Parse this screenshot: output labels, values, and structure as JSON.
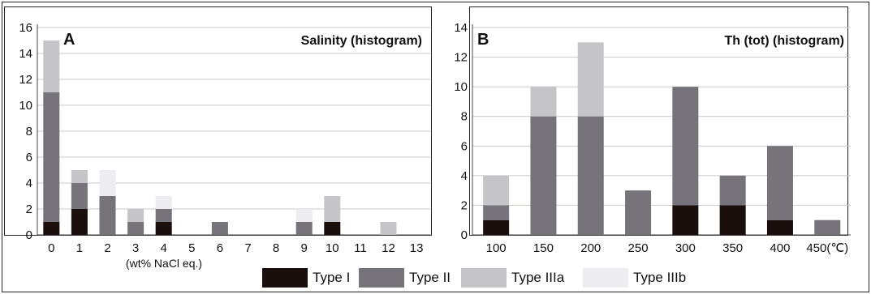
{
  "colors": {
    "Type I": "#1a0f0c",
    "Type II": "#77737a",
    "Type IIIa": "#c5c5c9",
    "Type IIIb": "#ececf1"
  },
  "legend": {
    "items": [
      "Type I",
      "Type II",
      "Type IIIa",
      "Type IIIb"
    ]
  },
  "chart_data": [
    {
      "type": "bar",
      "stacked": true,
      "panel_label": "A",
      "title": "Salinity (histogram)",
      "xlabel": "(wt% NaCl eq.)",
      "ylabel": "",
      "ylim": [
        0,
        16
      ],
      "yticks": [
        "0",
        "2",
        "4",
        "6",
        "8",
        "10",
        "12",
        "14",
        "16"
      ],
      "grid": true,
      "categories": [
        "0",
        "1",
        "2",
        "3",
        "4",
        "5",
        "6",
        "7",
        "8",
        "9",
        "10",
        "11",
        "12",
        "13"
      ],
      "series": [
        {
          "name": "Type I",
          "values": [
            1,
            2,
            0,
            0,
            1,
            0,
            0,
            0,
            0,
            0,
            1,
            0,
            0,
            0
          ]
        },
        {
          "name": "Type II",
          "values": [
            10,
            2,
            3,
            1,
            1,
            0,
            1,
            0,
            0,
            1,
            0,
            0,
            0,
            0
          ]
        },
        {
          "name": "Type IIIa",
          "values": [
            4,
            1,
            0,
            1,
            0,
            0,
            0,
            0,
            0,
            0,
            2,
            0,
            1,
            0
          ]
        },
        {
          "name": "Type IIIb",
          "values": [
            0,
            0,
            2,
            0,
            1,
            0,
            0,
            0,
            0,
            1,
            0,
            0,
            0,
            0
          ]
        }
      ]
    },
    {
      "type": "bar",
      "stacked": true,
      "panel_label": "B",
      "title": "Th (tot) (histogram)",
      "xlabel": "",
      "ylabel": "",
      "ylim": [
        0,
        14
      ],
      "yticks": [
        "0",
        "2",
        "4",
        "6",
        "8",
        "10",
        "12",
        "14"
      ],
      "grid": true,
      "categories": [
        "100",
        "150",
        "200",
        "250",
        "300",
        "350",
        "400",
        "450(℃)"
      ],
      "series": [
        {
          "name": "Type I",
          "values": [
            1,
            0,
            0,
            0,
            2,
            2,
            1,
            0
          ]
        },
        {
          "name": "Type II",
          "values": [
            1,
            8,
            8,
            3,
            8,
            2,
            5,
            1
          ]
        },
        {
          "name": "Type IIIa",
          "values": [
            2,
            2,
            5,
            0,
            0,
            0,
            0,
            0
          ]
        },
        {
          "name": "Type IIIb",
          "values": [
            0,
            0,
            0,
            0,
            0,
            0,
            0,
            0
          ]
        }
      ]
    }
  ]
}
